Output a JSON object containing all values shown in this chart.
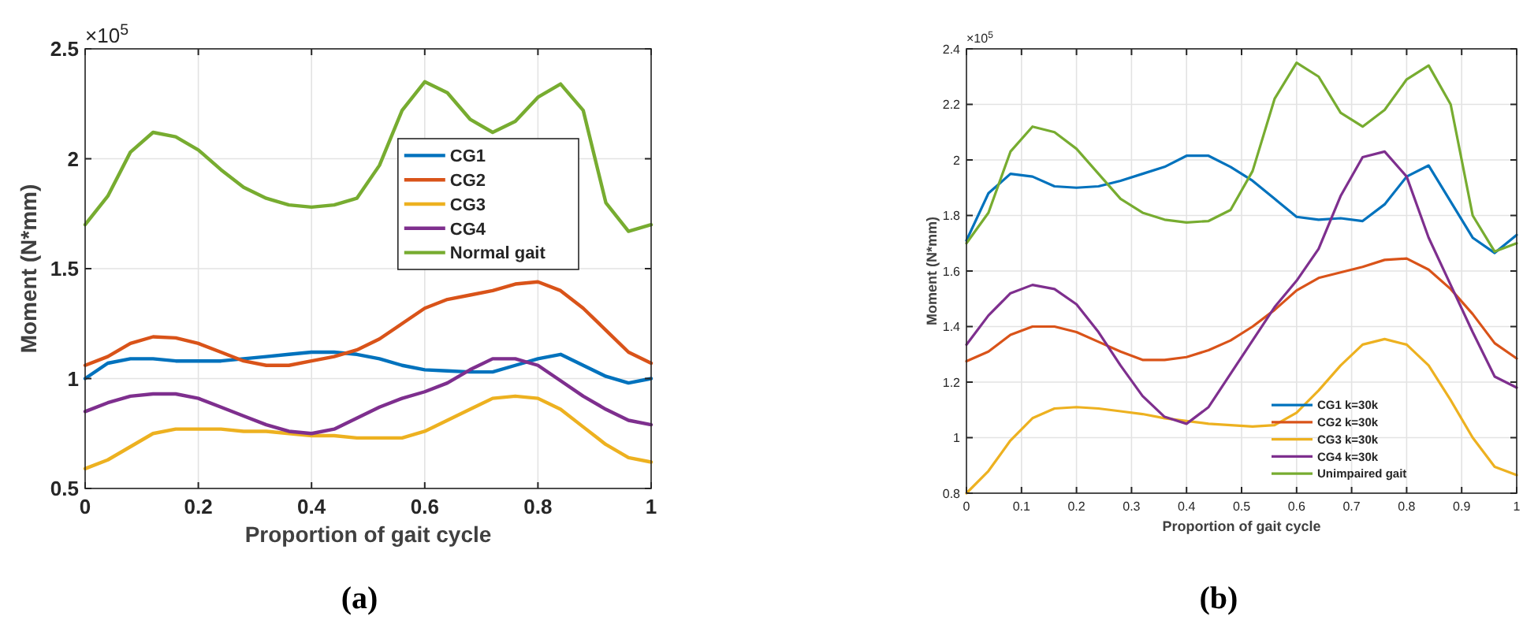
{
  "chart_data": [
    {
      "type": "line",
      "xlabel": "Proportion of gait cycle",
      "ylabel": "Moment (N*mm)",
      "annotations": [
        "×10$^{5}$",
        "(a)"
      ],
      "xlim": [
        0,
        1
      ],
      "ylim": [
        0.5,
        2.5
      ],
      "xticks": [
        0,
        0.2,
        0.4,
        0.6,
        0.8,
        1
      ],
      "yticks": [
        0.5,
        1,
        1.5,
        2,
        2.5
      ],
      "grid": true,
      "legend": "right",
      "marker": "none",
      "line_style": "solid",
      "x": [
        0,
        0.04,
        0.08,
        0.12,
        0.16,
        0.2,
        0.24,
        0.28,
        0.32,
        0.36,
        0.4,
        0.44,
        0.48,
        0.52,
        0.56,
        0.6,
        0.64,
        0.68,
        0.72,
        0.76,
        0.8,
        0.84,
        0.88,
        0.92,
        0.96,
        1
      ],
      "series": [
        {
          "name": "CG1",
          "color": "#0072bd",
          "values": [
            1.0,
            1.07,
            1.09,
            1.09,
            1.08,
            1.08,
            1.08,
            1.09,
            1.1,
            1.11,
            1.12,
            1.12,
            1.11,
            1.09,
            1.06,
            1.04,
            1.035,
            1.03,
            1.03,
            1.06,
            1.09,
            1.11,
            1.06,
            1.01,
            0.98,
            1.0
          ]
        },
        {
          "name": "CG2",
          "color": "#d95319",
          "values": [
            1.06,
            1.1,
            1.16,
            1.19,
            1.185,
            1.16,
            1.12,
            1.08,
            1.06,
            1.06,
            1.08,
            1.1,
            1.13,
            1.18,
            1.25,
            1.32,
            1.36,
            1.38,
            1.4,
            1.43,
            1.44,
            1.4,
            1.32,
            1.22,
            1.12,
            1.07
          ]
        },
        {
          "name": "CG3",
          "color": "#edb120",
          "values": [
            0.59,
            0.63,
            0.69,
            0.75,
            0.77,
            0.77,
            0.77,
            0.76,
            0.76,
            0.75,
            0.74,
            0.74,
            0.73,
            0.73,
            0.73,
            0.76,
            0.81,
            0.86,
            0.91,
            0.92,
            0.91,
            0.86,
            0.78,
            0.7,
            0.64,
            0.62
          ]
        },
        {
          "name": "CG4",
          "color": "#7e2f8e",
          "values": [
            0.85,
            0.89,
            0.92,
            0.93,
            0.93,
            0.91,
            0.87,
            0.83,
            0.79,
            0.76,
            0.75,
            0.77,
            0.82,
            0.87,
            0.91,
            0.94,
            0.98,
            1.04,
            1.09,
            1.09,
            1.06,
            0.99,
            0.92,
            0.86,
            0.81,
            0.79
          ]
        },
        {
          "name": "Normal gait",
          "color": "#77ac30",
          "values": [
            1.7,
            1.83,
            2.03,
            2.12,
            2.1,
            2.04,
            1.95,
            1.87,
            1.82,
            1.79,
            1.78,
            1.79,
            1.82,
            1.97,
            2.22,
            2.35,
            2.3,
            2.18,
            2.12,
            2.17,
            2.28,
            2.34,
            2.22,
            1.8,
            1.67,
            1.7
          ]
        }
      ]
    },
    {
      "type": "line",
      "xlabel": "Proportion of gait cycle",
      "ylabel": "Moment (N*mm)",
      "annotations": [
        "×10$^{5}$",
        "(b)"
      ],
      "xlim": [
        0,
        1
      ],
      "ylim": [
        0.8,
        2.4
      ],
      "xticks": [
        0,
        0.1,
        0.2,
        0.3,
        0.4,
        0.5,
        0.6,
        0.7,
        0.8,
        0.9,
        1
      ],
      "yticks": [
        0.8,
        1,
        1.2,
        1.4,
        1.6,
        1.8,
        2,
        2.2,
        2.4
      ],
      "grid": true,
      "legend": "bottom right",
      "marker": "none",
      "line_style": "solid",
      "x": [
        0,
        0.04,
        0.08,
        0.12,
        0.16,
        0.2,
        0.24,
        0.28,
        0.32,
        0.36,
        0.4,
        0.44,
        0.48,
        0.52,
        0.56,
        0.6,
        0.64,
        0.68,
        0.72,
        0.76,
        0.8,
        0.84,
        0.88,
        0.92,
        0.96,
        1
      ],
      "series": [
        {
          "name": "CG1 k=30k",
          "color": "#0072bd",
          "values": [
            1.71,
            1.88,
            1.95,
            1.94,
            1.905,
            1.9,
            1.905,
            1.925,
            1.95,
            1.975,
            2.015,
            2.015,
            1.975,
            1.925,
            1.86,
            1.795,
            1.785,
            1.79,
            1.78,
            1.84,
            1.94,
            1.98,
            1.85,
            1.72,
            1.665,
            1.73
          ]
        },
        {
          "name": "CG2 k=30k",
          "color": "#d95319",
          "values": [
            1.275,
            1.31,
            1.37,
            1.4,
            1.4,
            1.38,
            1.345,
            1.31,
            1.28,
            1.28,
            1.29,
            1.315,
            1.35,
            1.4,
            1.46,
            1.53,
            1.575,
            1.595,
            1.615,
            1.64,
            1.645,
            1.605,
            1.535,
            1.445,
            1.34,
            1.285
          ]
        },
        {
          "name": "CG3 k=30k",
          "color": "#edb120",
          "values": [
            0.8,
            0.88,
            0.99,
            1.07,
            1.105,
            1.11,
            1.105,
            1.095,
            1.085,
            1.07,
            1.06,
            1.05,
            1.045,
            1.04,
            1.045,
            1.09,
            1.17,
            1.26,
            1.335,
            1.355,
            1.335,
            1.26,
            1.135,
            1.0,
            0.895,
            0.865
          ]
        },
        {
          "name": "CG4 k=30k",
          "color": "#7e2f8e",
          "values": [
            1.335,
            1.44,
            1.52,
            1.55,
            1.535,
            1.48,
            1.38,
            1.26,
            1.15,
            1.075,
            1.05,
            1.11,
            1.23,
            1.35,
            1.47,
            1.565,
            1.68,
            1.87,
            2.01,
            2.03,
            1.94,
            1.72,
            1.55,
            1.38,
            1.22,
            1.18
          ]
        },
        {
          "name": "Unimpaired gait",
          "color": "#77ac30",
          "values": [
            1.7,
            1.81,
            2.03,
            2.12,
            2.1,
            2.04,
            1.95,
            1.86,
            1.81,
            1.785,
            1.775,
            1.78,
            1.82,
            1.96,
            2.22,
            2.35,
            2.3,
            2.17,
            2.12,
            2.18,
            2.29,
            2.34,
            2.2,
            1.8,
            1.67,
            1.7
          ]
        }
      ]
    }
  ]
}
